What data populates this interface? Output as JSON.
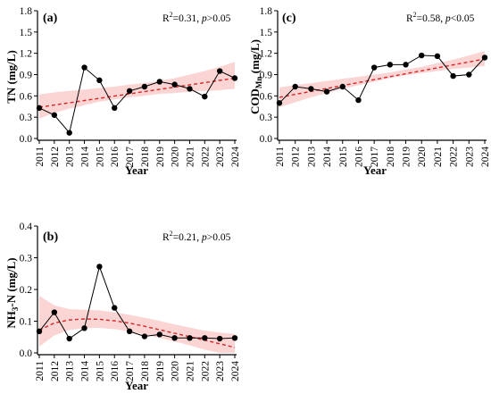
{
  "chart_data": [
    {
      "type": "line",
      "panel": "(a)",
      "stat_r2": "R",
      "stat_sup": "2",
      "stat_r2val": "=0.31, ",
      "stat_p": "p",
      "stat_pval": ">0.05",
      "ylabel": "TN (mg/L)",
      "xlabel": "Year",
      "ylim": [
        0,
        1.8
      ],
      "yticks": [
        "0.0",
        "0.3",
        "0.6",
        "0.9",
        "1.2",
        "1.5",
        "1.8"
      ],
      "x": [
        "2011",
        "2012",
        "2013",
        "2014",
        "2015",
        "2016",
        "2017",
        "2018",
        "2019",
        "2020",
        "2021",
        "2022",
        "2023",
        "2024"
      ],
      "values": [
        0.43,
        0.33,
        0.08,
        1.0,
        0.82,
        0.43,
        0.67,
        0.73,
        0.8,
        0.76,
        0.7,
        0.59,
        0.95,
        0.85
      ],
      "trend": [
        0.44,
        0.85
      ],
      "band_lower": [
        0.28,
        0.36,
        0.42,
        0.47,
        0.52,
        0.55,
        0.58,
        0.6,
        0.63,
        0.64,
        0.66,
        0.67,
        0.68,
        0.7
      ],
      "band_upper": [
        0.62,
        0.65,
        0.67,
        0.69,
        0.71,
        0.73,
        0.76,
        0.78,
        0.81,
        0.85,
        0.9,
        0.95,
        1.01,
        1.08
      ],
      "trend_color": "#d62728",
      "band_color": "#f9c6c6"
    },
    {
      "type": "line",
      "panel": "(c)",
      "stat_r2": "R",
      "stat_sup": "2",
      "stat_r2val": "=0.58, ",
      "stat_p": "p",
      "stat_pval": "<0.05",
      "ylabel_main": "COD",
      "ylabel_sub": "Mn",
      "ylabel_rest": " (mg/L)",
      "xlabel": "Year",
      "ylim": [
        0,
        1.8
      ],
      "yticks": [
        "0.0",
        "0.3",
        "0.6",
        "0.9",
        "1.2",
        "1.5",
        "1.8"
      ],
      "x": [
        "2011",
        "2012",
        "2013",
        "2014",
        "2015",
        "2016",
        "2017",
        "2018",
        "2019",
        "2020",
        "2021",
        "2022",
        "2023",
        "2024"
      ],
      "values": [
        0.5,
        0.73,
        0.7,
        0.66,
        0.73,
        0.54,
        1.0,
        1.04,
        1.04,
        1.17,
        1.16,
        0.88,
        0.9,
        1.14
      ],
      "trend": [
        0.58,
        1.12
      ],
      "band_lower": [
        0.44,
        0.51,
        0.58,
        0.64,
        0.7,
        0.75,
        0.8,
        0.85,
        0.89,
        0.92,
        0.95,
        0.98,
        1.0,
        1.02
      ],
      "band_upper": [
        0.72,
        0.75,
        0.78,
        0.81,
        0.84,
        0.87,
        0.9,
        0.93,
        0.97,
        1.01,
        1.06,
        1.11,
        1.17,
        1.23
      ],
      "trend_color": "#d62728",
      "band_color": "#f9c6c6"
    },
    {
      "type": "line",
      "panel": "(b)",
      "stat_r2": "R",
      "stat_sup": "2",
      "stat_r2val": "=0.21, ",
      "stat_p": "p",
      "stat_pval": ">0.05",
      "ylabel_main": "NH",
      "ylabel_sub": "3",
      "ylabel_rest": "-N (mg/L)",
      "xlabel": "Year",
      "ylim": [
        0,
        0.4
      ],
      "yticks": [
        "0.0",
        "0.1",
        "0.2",
        "0.3",
        "0.4"
      ],
      "x": [
        "2011",
        "2012",
        "2013",
        "2014",
        "2015",
        "2016",
        "2017",
        "2018",
        "2019",
        "2020",
        "2021",
        "2022",
        "2023",
        "2024"
      ],
      "values": [
        0.068,
        0.128,
        0.045,
        0.078,
        0.272,
        0.142,
        0.068,
        0.052,
        0.058,
        0.047,
        0.047,
        0.047,
        0.045,
        0.047
      ],
      "trend_curve": [
        0.072,
        0.094,
        0.104,
        0.107,
        0.106,
        0.101,
        0.094,
        0.084,
        0.073,
        0.062,
        0.051,
        0.04,
        0.029,
        0.017
      ],
      "band_lower": [
        0.02,
        0.055,
        0.072,
        0.078,
        0.079,
        0.075,
        0.068,
        0.058,
        0.047,
        0.036,
        0.024,
        0.01,
        0.0,
        0.0
      ],
      "band_upper": [
        0.18,
        0.15,
        0.138,
        0.136,
        0.134,
        0.128,
        0.12,
        0.111,
        0.101,
        0.09,
        0.08,
        0.07,
        0.064,
        0.06
      ],
      "trend_color": "#d62728",
      "band_color": "#f9c6c6"
    }
  ]
}
